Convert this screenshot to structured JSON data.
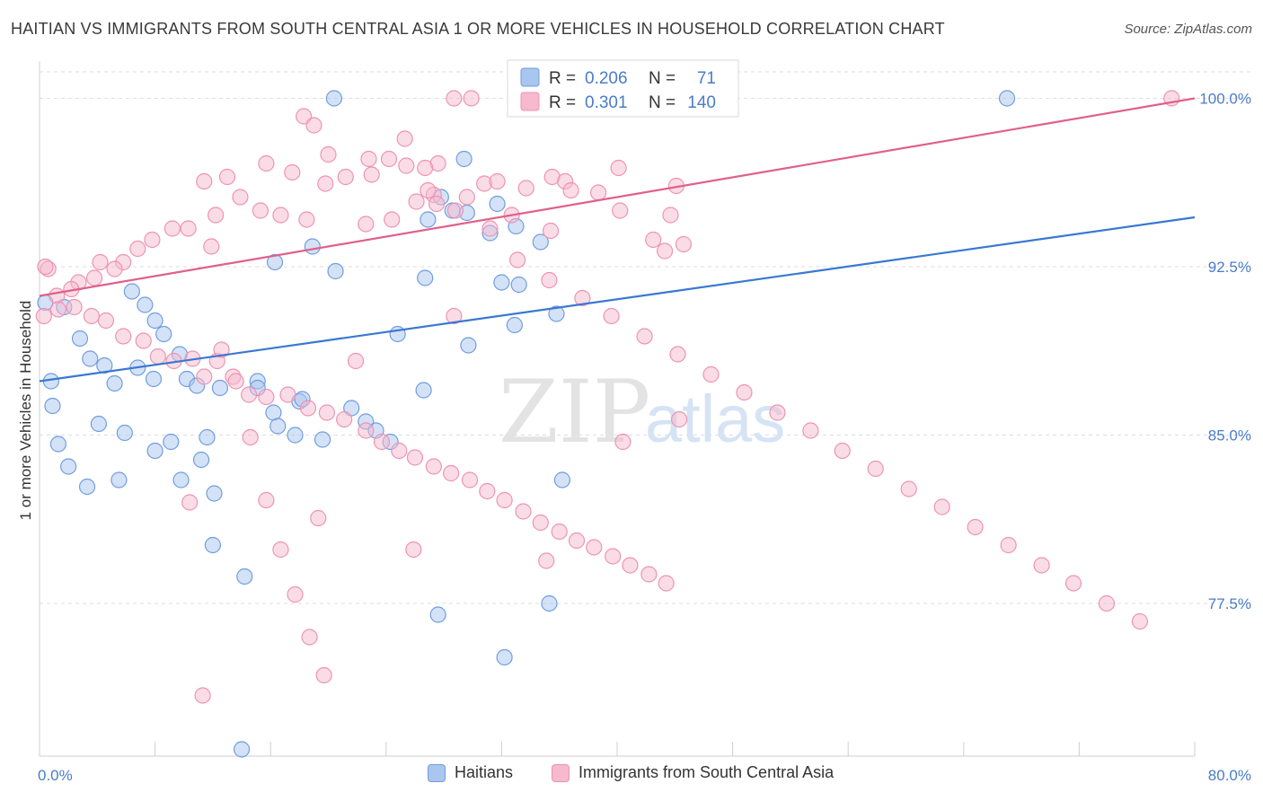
{
  "title": "HAITIAN VS IMMIGRANTS FROM SOUTH CENTRAL ASIA 1 OR MORE VEHICLES IN HOUSEHOLD CORRELATION CHART",
  "source": "Source: ZipAtlas.com",
  "watermark": {
    "zip": "ZIP",
    "atlas": "atlas"
  },
  "colors": {
    "blue_fill": "#a9c6ef",
    "blue_stroke": "#6f9de0",
    "blue_line": "#3a78d0",
    "pink_fill": "#f6b9cd",
    "pink_stroke": "#ee93b2",
    "pink_line": "#e0608a",
    "axis_label": "#4a7cc9",
    "grid": "#dddddd"
  },
  "legend_top": {
    "rows": [
      {
        "r_label": "R =",
        "r_value": "0.206",
        "n_label": "N =",
        "n_value": "71"
      },
      {
        "r_label": "R =",
        "r_value": "0.301",
        "n_label": "N =",
        "n_value": "140"
      }
    ]
  },
  "legend_bottom": {
    "items": [
      "Haitians",
      "Immigrants from South Central Asia"
    ]
  },
  "chart_data": {
    "type": "scatter",
    "title": "HAITIAN VS IMMIGRANTS FROM SOUTH CENTRAL ASIA 1 OR MORE VEHICLES IN HOUSEHOLD CORRELATION CHART",
    "xlabel": "",
    "ylabel": "1 or more Vehicles in Household",
    "xlim": [
      0,
      80
    ],
    "ylim": [
      70.7,
      101.5
    ],
    "x_tick_labels": [
      "0.0%",
      "80.0%"
    ],
    "y_ticks": [
      77.5,
      85.0,
      92.5,
      100.0
    ],
    "y_tick_labels": [
      "77.5%",
      "85.0%",
      "92.5%",
      "100.0%"
    ],
    "grid": true,
    "legend_position": "top-center",
    "series": [
      {
        "name": "Haitians",
        "r": 0.206,
        "n": 71,
        "trend": {
          "x": [
            0,
            80
          ],
          "y": [
            87.4,
            94.7
          ]
        },
        "points": [
          [
            20.4,
            100.0
          ],
          [
            67.0,
            100.0
          ],
          [
            29.4,
            97.3
          ],
          [
            27.8,
            95.6
          ],
          [
            28.6,
            95.0
          ],
          [
            31.7,
            95.3
          ],
          [
            29.6,
            94.9
          ],
          [
            33.0,
            94.3
          ],
          [
            31.2,
            94.0
          ],
          [
            26.9,
            94.6
          ],
          [
            34.7,
            93.6
          ],
          [
            18.9,
            93.4
          ],
          [
            16.3,
            92.7
          ],
          [
            20.5,
            92.3
          ],
          [
            26.7,
            92.0
          ],
          [
            32.0,
            91.8
          ],
          [
            33.2,
            91.7
          ],
          [
            35.8,
            90.4
          ],
          [
            32.9,
            89.9
          ],
          [
            24.8,
            89.5
          ],
          [
            29.7,
            89.0
          ],
          [
            1.7,
            90.7
          ],
          [
            0.4,
            90.9
          ],
          [
            2.8,
            89.3
          ],
          [
            3.5,
            88.4
          ],
          [
            6.4,
            91.4
          ],
          [
            7.3,
            90.8
          ],
          [
            8.0,
            90.1
          ],
          [
            8.6,
            89.5
          ],
          [
            9.7,
            88.6
          ],
          [
            10.2,
            87.5
          ],
          [
            10.9,
            87.2
          ],
          [
            12.5,
            87.1
          ],
          [
            15.1,
            87.4
          ],
          [
            16.2,
            86.0
          ],
          [
            18.0,
            86.5
          ],
          [
            4.5,
            88.1
          ],
          [
            6.8,
            88.0
          ],
          [
            7.9,
            87.5
          ],
          [
            5.2,
            87.3
          ],
          [
            0.8,
            87.4
          ],
          [
            0.9,
            86.3
          ],
          [
            4.1,
            85.5
          ],
          [
            5.9,
            85.1
          ],
          [
            8.0,
            84.3
          ],
          [
            9.1,
            84.7
          ],
          [
            11.2,
            83.9
          ],
          [
            1.3,
            84.6
          ],
          [
            2.0,
            83.6
          ],
          [
            3.3,
            82.7
          ],
          [
            5.5,
            83.0
          ],
          [
            11.6,
            84.9
          ],
          [
            12.1,
            82.4
          ],
          [
            15.1,
            87.1
          ],
          [
            18.2,
            86.6
          ],
          [
            21.6,
            86.2
          ],
          [
            22.6,
            85.6
          ],
          [
            26.6,
            87.0
          ],
          [
            16.5,
            85.4
          ],
          [
            17.7,
            85.0
          ],
          [
            19.6,
            84.8
          ],
          [
            23.3,
            85.2
          ],
          [
            24.3,
            84.7
          ],
          [
            12.0,
            80.1
          ],
          [
            14.2,
            78.7
          ],
          [
            27.6,
            77.0
          ],
          [
            32.2,
            75.1
          ],
          [
            14.0,
            71.0
          ],
          [
            36.2,
            83.0
          ],
          [
            35.3,
            77.5
          ],
          [
            9.8,
            83.0
          ]
        ]
      },
      {
        "name": "Immigrants from South Central Asia",
        "r": 0.301,
        "n": 140,
        "trend": {
          "x": [
            0,
            80
          ],
          "y": [
            91.2,
            100.0
          ]
        },
        "points": [
          [
            28.7,
            100.0
          ],
          [
            29.9,
            100.0
          ],
          [
            33.6,
            100.0
          ],
          [
            34.7,
            100.0
          ],
          [
            41.2,
            100.0
          ],
          [
            78.4,
            100.0
          ],
          [
            18.3,
            99.2
          ],
          [
            19.0,
            98.8
          ],
          [
            25.3,
            98.2
          ],
          [
            24.2,
            97.3
          ],
          [
            20.0,
            97.5
          ],
          [
            22.8,
            97.3
          ],
          [
            25.4,
            97.0
          ],
          [
            27.6,
            97.1
          ],
          [
            26.7,
            96.9
          ],
          [
            35.5,
            96.5
          ],
          [
            33.7,
            96.0
          ],
          [
            36.4,
            96.3
          ],
          [
            40.1,
            96.9
          ],
          [
            15.7,
            97.1
          ],
          [
            13.0,
            96.5
          ],
          [
            11.4,
            96.3
          ],
          [
            17.5,
            96.7
          ],
          [
            21.2,
            96.5
          ],
          [
            23.0,
            96.6
          ],
          [
            19.8,
            96.2
          ],
          [
            30.8,
            96.2
          ],
          [
            31.7,
            96.3
          ],
          [
            29.6,
            95.6
          ],
          [
            28.8,
            95.0
          ],
          [
            27.3,
            95.7
          ],
          [
            27.5,
            95.3
          ],
          [
            24.4,
            94.6
          ],
          [
            22.6,
            94.4
          ],
          [
            18.5,
            94.6
          ],
          [
            15.3,
            95.0
          ],
          [
            16.7,
            94.8
          ],
          [
            13.9,
            95.6
          ],
          [
            12.2,
            94.8
          ],
          [
            11.9,
            93.4
          ],
          [
            10.3,
            94.2
          ],
          [
            9.2,
            94.2
          ],
          [
            7.8,
            93.7
          ],
          [
            6.8,
            93.3
          ],
          [
            5.8,
            92.7
          ],
          [
            5.2,
            92.4
          ],
          [
            4.2,
            92.7
          ],
          [
            3.8,
            92.0
          ],
          [
            2.7,
            91.8
          ],
          [
            2.2,
            91.5
          ],
          [
            1.2,
            91.2
          ],
          [
            0.6,
            92.4
          ],
          [
            0.4,
            92.5
          ],
          [
            0.3,
            90.3
          ],
          [
            1.3,
            90.6
          ],
          [
            2.4,
            90.7
          ],
          [
            3.6,
            90.3
          ],
          [
            4.6,
            90.1
          ],
          [
            5.8,
            89.4
          ],
          [
            7.2,
            89.2
          ],
          [
            8.2,
            88.5
          ],
          [
            9.3,
            88.3
          ],
          [
            10.6,
            88.4
          ],
          [
            11.4,
            87.6
          ],
          [
            12.3,
            88.3
          ],
          [
            13.4,
            87.6
          ],
          [
            14.5,
            86.8
          ],
          [
            15.7,
            86.7
          ],
          [
            17.2,
            86.8
          ],
          [
            18.6,
            86.2
          ],
          [
            19.9,
            86.0
          ],
          [
            21.1,
            85.7
          ],
          [
            22.6,
            85.2
          ],
          [
            23.7,
            84.7
          ],
          [
            24.9,
            84.3
          ],
          [
            26.0,
            84.0
          ],
          [
            27.3,
            83.6
          ],
          [
            28.5,
            83.3
          ],
          [
            29.8,
            83.0
          ],
          [
            31.0,
            82.5
          ],
          [
            32.2,
            82.1
          ],
          [
            33.5,
            81.6
          ],
          [
            34.7,
            81.1
          ],
          [
            36.0,
            80.7
          ],
          [
            37.2,
            80.3
          ],
          [
            38.4,
            80.0
          ],
          [
            39.7,
            79.6
          ],
          [
            40.9,
            79.2
          ],
          [
            42.2,
            78.8
          ],
          [
            43.4,
            78.4
          ],
          [
            26.1,
            95.4
          ],
          [
            31.2,
            94.2
          ],
          [
            32.7,
            94.8
          ],
          [
            35.4,
            94.1
          ],
          [
            36.8,
            95.9
          ],
          [
            38.7,
            95.8
          ],
          [
            40.2,
            95.0
          ],
          [
            42.5,
            93.7
          ],
          [
            43.7,
            94.8
          ],
          [
            44.1,
            96.1
          ],
          [
            43.3,
            93.2
          ],
          [
            44.6,
            93.5
          ],
          [
            26.9,
            95.9
          ],
          [
            33.1,
            92.8
          ],
          [
            35.3,
            91.9
          ],
          [
            37.6,
            91.1
          ],
          [
            39.6,
            90.3
          ],
          [
            41.9,
            89.4
          ],
          [
            44.2,
            88.6
          ],
          [
            46.5,
            87.7
          ],
          [
            48.8,
            86.9
          ],
          [
            51.1,
            86.0
          ],
          [
            53.4,
            85.2
          ],
          [
            55.6,
            84.3
          ],
          [
            57.9,
            83.5
          ],
          [
            60.2,
            82.6
          ],
          [
            62.5,
            81.8
          ],
          [
            64.8,
            80.9
          ],
          [
            67.1,
            80.1
          ],
          [
            69.4,
            79.2
          ],
          [
            71.6,
            78.4
          ],
          [
            73.9,
            77.5
          ],
          [
            76.2,
            76.7
          ],
          [
            44.3,
            85.7
          ],
          [
            11.3,
            73.4
          ],
          [
            10.4,
            82.0
          ],
          [
            19.3,
            81.3
          ],
          [
            25.9,
            79.9
          ],
          [
            35.1,
            79.4
          ],
          [
            40.4,
            84.7
          ],
          [
            21.9,
            88.3
          ],
          [
            28.7,
            90.3
          ],
          [
            12.6,
            88.8
          ],
          [
            13.6,
            87.4
          ],
          [
            14.6,
            84.9
          ],
          [
            15.7,
            82.1
          ],
          [
            16.7,
            79.9
          ],
          [
            17.7,
            77.9
          ],
          [
            18.7,
            76.0
          ],
          [
            19.7,
            74.3
          ]
        ]
      }
    ]
  }
}
